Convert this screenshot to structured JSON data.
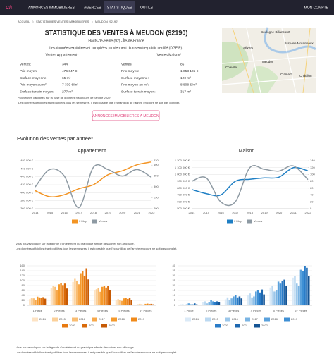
{
  "nav": {
    "logo": "C/I",
    "links": [
      "ANNONCES IMMOBILIÈRES",
      "AGENCES",
      "STATISTIQUES",
      "OUTILS"
    ],
    "account": "MON COMPTE"
  },
  "breadcrumb": [
    "ACCUEIL",
    "STATISTIQUES VENTES IMMOBILIÈRES",
    "MEUDON (92190)"
  ],
  "header": {
    "title": "STATISTIQUE DES VENTES À MEUDON (92190)",
    "subtitle": "Hauts-de-Seine (92) - Île-de-France",
    "source": "Les données exploitées et compilées proviennent d'un service public certifié (DGFIP)."
  },
  "stats": {
    "columns": [
      {
        "header": "Ventes Appartement*",
        "rows": [
          [
            "Ventes:",
            "344"
          ],
          [
            "Prix moyen:",
            "476 647 €"
          ],
          [
            "Surface moyenne:",
            "65 m²"
          ],
          [
            "Prix moyen au m²:",
            "7 339 €/m²"
          ],
          [
            "Surface terrain moyen:",
            "277 m²"
          ]
        ]
      },
      {
        "header": "Ventes Maison*",
        "rows": [
          [
            "Ventes:",
            "85"
          ],
          [
            "Prix moyen:",
            "1 053 105 €"
          ],
          [
            "Surface moyenne:",
            "120 m²"
          ],
          [
            "Prix moyen au m²:",
            "8 808 €/m²"
          ],
          [
            "Surface terrain moyen:",
            "317 m²"
          ]
        ]
      }
    ],
    "footnotes": [
      "*Moyennes calculées sur la base de données historiques de l'année 2022*",
      "Les données officielles étant publiées tous les semestres, il est possible que l'échantillon de l'année en cours ne soit pas complet."
    ]
  },
  "map": {
    "labels": [
      "Boulogne-Billancourt",
      "Issy-les-Moulineaux",
      "Sèvres",
      "Chaville",
      "Meudon",
      "Clamart",
      "Châtillon"
    ]
  },
  "button": "ANNONCES IMMOBILIÈRES À MEUDON",
  "section_title": "Evolution des ventes par année*",
  "chart_data": [
    {
      "type": "line",
      "title": "Appartement",
      "categories": [
        "2014",
        "2015",
        "2016",
        "2017",
        "2018",
        "2019",
        "2020",
        "2021",
        "2022"
      ],
      "series": [
        {
          "name": "€ Moy",
          "color": "#f39423",
          "values": [
            405000,
            390000,
            395000,
            410000,
            420000,
            445000,
            455000,
            470000,
            477000
          ]
        },
        {
          "name": "Ventes",
          "color": "#8e9aa3",
          "axis": "y2",
          "values": [
            300,
            380,
            350,
            205,
            390,
            380,
            350,
            380,
            344
          ]
        }
      ],
      "ylim": [
        360000,
        480000
      ],
      "yticks": [
        {
          "value": 360000,
          "label": "360 000 €"
        },
        {
          "value": 380000,
          "label": "380 000 €"
        },
        {
          "value": 400000,
          "label": "400 000 €"
        },
        {
          "value": 420000,
          "label": "420 000 €"
        },
        {
          "value": 440000,
          "label": "440 000 €"
        },
        {
          "value": 460000,
          "label": "460 000 €"
        },
        {
          "value": 480000,
          "label": "480 000 €"
        }
      ],
      "y2lim": [
        200,
        420
      ],
      "y2ticks": [
        200,
        250,
        300,
        350,
        400,
        420
      ],
      "grid": true
    },
    {
      "type": "line",
      "title": "Maison",
      "categories": [
        "2014",
        "2015",
        "2016",
        "2017",
        "2018",
        "2019",
        "2020",
        "2021",
        "2022"
      ],
      "series": [
        {
          "name": "€ Moy",
          "color": "#1f7fc4",
          "values": [
            780000,
            720000,
            700000,
            900000,
            930000,
            950000,
            960000,
            1100000,
            1053105
          ]
        },
        {
          "name": "Ventes",
          "color": "#8e9aa3",
          "axis": "y2",
          "values": [
            80,
            90,
            20,
            20,
            120,
            115,
            110,
            125,
            85
          ]
        }
      ],
      "ylim": [
        500000,
        1200000
      ],
      "yticks": [
        {
          "value": 500000,
          "label": "500 000 €"
        },
        {
          "value": 600000,
          "label": "600 000 €"
        },
        {
          "value": 700000,
          "label": "700 000 €"
        },
        {
          "value": 800000,
          "label": "800 000 €"
        },
        {
          "value": 900000,
          "label": "900 000 €"
        },
        {
          "value": 1000000,
          "label": "1 000 000 €"
        },
        {
          "value": 1100000,
          "label": "1 100 000 €"
        },
        {
          "value": 1200000,
          "label": "1 200 000 €"
        }
      ],
      "y2lim": [
        0,
        140
      ],
      "y2ticks": [
        0,
        20,
        40,
        60,
        80,
        100,
        120,
        140
      ],
      "grid": true
    },
    {
      "type": "bar",
      "categories": [
        "1 Pièce",
        "2 Pièces",
        "3 Pièces",
        "4 Pièces",
        "5 Pièces",
        "6+ Pièces"
      ],
      "series": [
        {
          "name": "2014",
          "color": "#fde3c4",
          "values": [
            25,
            70,
            95,
            60,
            20,
            5
          ]
        },
        {
          "name": "2015",
          "color": "#fbd09a",
          "values": [
            30,
            80,
            110,
            65,
            25,
            6
          ]
        },
        {
          "name": "2016",
          "color": "#f9bd73",
          "values": [
            28,
            75,
            100,
            70,
            22,
            4
          ]
        },
        {
          "name": "2017",
          "color": "#f7a84b",
          "values": [
            20,
            60,
            85,
            55,
            18,
            3
          ]
        },
        {
          "name": "2018",
          "color": "#f59a2c",
          "values": [
            35,
            85,
            130,
            75,
            28,
            6
          ]
        },
        {
          "name": "2019",
          "color": "#f08a1a",
          "values": [
            32,
            90,
            140,
            80,
            30,
            7
          ]
        },
        {
          "name": "2020",
          "color": "#e87a10",
          "values": [
            30,
            82,
            120,
            72,
            26,
            5
          ]
        },
        {
          "name": "2021",
          "color": "#d96a0a",
          "values": [
            33,
            88,
            150,
            78,
            29,
            6
          ]
        },
        {
          "name": "2022",
          "color": "#c65a05",
          "values": [
            27,
            68,
            105,
            62,
            21,
            4
          ]
        }
      ],
      "ylim": [
        0,
        160
      ],
      "yticks": [
        0,
        20,
        40,
        60,
        80,
        100,
        120,
        140,
        160
      ],
      "grid": true
    },
    {
      "type": "bar",
      "categories": [
        "1 Pièce",
        "2 Pièces",
        "3 Pièces",
        "4 Pièces",
        "5 Pièces",
        "6+ Pièces"
      ],
      "series": [
        {
          "name": "2014",
          "color": "#dbeaf7",
          "values": [
            1,
            3,
            6,
            10,
            18,
            28
          ]
        },
        {
          "name": "2015",
          "color": "#bcd9f1",
          "values": [
            1,
            4,
            8,
            12,
            20,
            30
          ]
        },
        {
          "name": "2016",
          "color": "#9cc7ea",
          "values": [
            0,
            2,
            5,
            8,
            14,
            22
          ]
        },
        {
          "name": "2017",
          "color": "#7ab4e3",
          "values": [
            1,
            3,
            7,
            9,
            15,
            20
          ]
        },
        {
          "name": "2018",
          "color": "#5aa1dc",
          "values": [
            2,
            5,
            9,
            14,
            24,
            36
          ]
        },
        {
          "name": "2019",
          "color": "#3e8fd4",
          "values": [
            1,
            4,
            10,
            15,
            22,
            35
          ]
        },
        {
          "name": "2020",
          "color": "#2a7cc8",
          "values": [
            1,
            3,
            8,
            13,
            25,
            40
          ]
        },
        {
          "name": "2021",
          "color": "#1e68b0",
          "values": [
            2,
            4,
            9,
            16,
            26,
            38
          ]
        },
        {
          "name": "2022",
          "color": "#155494",
          "values": [
            1,
            3,
            7,
            11,
            20,
            30
          ]
        }
      ],
      "ylim": [
        0,
        40
      ],
      "yticks": [
        0,
        5,
        10,
        15,
        20,
        25,
        30,
        35,
        40
      ],
      "grid": true
    }
  ],
  "notes": [
    "Vous pouvez cliquer sur la légende d'un élément du graphique afin de désactiver son affichage.",
    "Les données officielles étant publiées tous les semestres, il est possible que l'échantillon de l'année en cours ne soit pas complet."
  ],
  "notes_bottom": [
    "Vous pouvez cliquer sur la légende d'un élément du graphique afin de désactiver son affichage.",
    "Les données officielles étant publiées tous les semestres, il est possible que l'échantillon de l'année en cours ne soit pas complet."
  ]
}
